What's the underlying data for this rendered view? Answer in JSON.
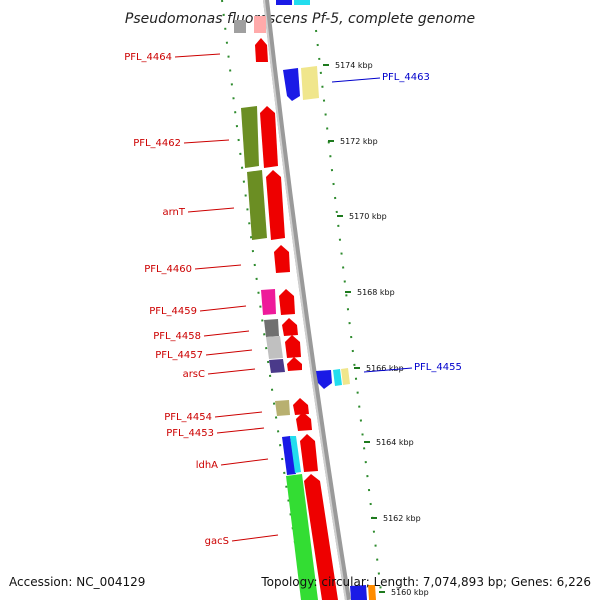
{
  "title": "Pseudomonas fluorescens Pf-5, complete genome",
  "footer": {
    "accession": "Accession: NC_004129",
    "topology": "Topology: circular; Length: 7,074,893 bp; Genes: 6,226"
  },
  "colors": {
    "backbone": "#8a8a8a",
    "tick": "#1e7a1e",
    "label_red": "#cc0000",
    "label_blue": "#0000cc"
  },
  "ticks": [
    {
      "label": "5174 kbp"
    },
    {
      "label": "5172 kbp"
    },
    {
      "label": "5170 kbp"
    },
    {
      "label": "5168 kbp"
    },
    {
      "label": "5166 kbp"
    },
    {
      "label": "5164 kbp"
    },
    {
      "label": "5162 kbp"
    },
    {
      "label": "5160 kbp"
    }
  ],
  "left_labels": [
    {
      "text": "PFL_4464"
    },
    {
      "text": "PFL_4462"
    },
    {
      "text": "arnT"
    },
    {
      "text": "PFL_4460"
    },
    {
      "text": "PFL_4459"
    },
    {
      "text": "PFL_4458"
    },
    {
      "text": "PFL_4457"
    },
    {
      "text": "arsC"
    },
    {
      "text": "PFL_4454"
    },
    {
      "text": "PFL_4453"
    },
    {
      "text": "ldhA"
    },
    {
      "text": "gacS"
    }
  ],
  "right_labels": [
    {
      "text": "PFL_4463"
    },
    {
      "text": "PFL_4455"
    }
  ]
}
